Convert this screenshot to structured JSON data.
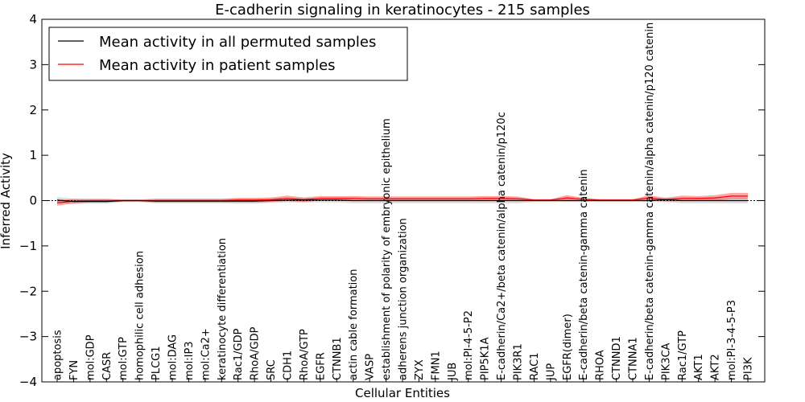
{
  "chart_data": {
    "type": "line",
    "title": "E-cadherin signaling in keratinocytes - 215 samples",
    "xlabel": "Cellular Entities",
    "ylabel": "Inferred Activity",
    "ylim": [
      -4,
      4
    ],
    "yticks": [
      "4",
      "3",
      "2",
      "1",
      "0",
      "−1",
      "−2",
      "−3",
      "−4"
    ],
    "grid": false,
    "legend_position": "top-left",
    "categories": [
      "apoptosis",
      "FYN",
      "mol:GDP",
      "CASR",
      "mol:GTP",
      "homophilic cell adhesion",
      "PLCG1",
      "mol:DAG",
      "mol:IP3",
      "mol:Ca2+",
      "keratinocyte differentiation",
      "Rac1/GDP",
      "RhoA/GDP",
      "SRC",
      "CDH1",
      "RhoA/GTP",
      "EGFR",
      "CTNNB1",
      "actin cable formation",
      "VASP",
      "establishment of polarity of embryonic epithelium",
      "adherens junction organization",
      "ZYX",
      "FMN1",
      "JUB",
      "mol:PI-4-5-P2",
      "PIP5K1A",
      "E-cadherin/Ca2+/beta catenin/alpha catenin/p120c",
      "PIK3R1",
      "RAC1",
      "JUP",
      "EGFR(dimer)",
      "E-cadherin/beta catenin-gamma catenin",
      "RHOA",
      "CTNND1",
      "CTNNA1",
      "E-cadherin/beta catenin-gamma catenin/alpha catenin/p120 catenin",
      "PIK3CA",
      "Rac1/GTP",
      "AKT1",
      "AKT2",
      "mol:PI-3-4-5-P3",
      "PI3K"
    ],
    "series": [
      {
        "name": "Mean activity in all permuted samples",
        "color": "#000000",
        "values": [
          0.01,
          -0.02,
          -0.02,
          -0.02,
          0.0,
          0.0,
          -0.01,
          -0.01,
          -0.01,
          -0.01,
          -0.01,
          -0.01,
          -0.01,
          0.0,
          0.01,
          0.01,
          0.01,
          0.01,
          0.0,
          0.0,
          0.0,
          0.0,
          0.0,
          0.0,
          0.0,
          0.0,
          0.0,
          0.0,
          0.0,
          0.0,
          0.0,
          0.0,
          0.0,
          0.0,
          0.0,
          0.0,
          0.0,
          0.02,
          0.0,
          0.0,
          0.0,
          0.0,
          0.0
        ],
        "band": [
          0.07,
          0.06,
          0.05,
          0.05,
          0.03,
          0.03,
          0.05,
          0.05,
          0.05,
          0.05,
          0.05,
          0.06,
          0.06,
          0.05,
          0.05,
          0.05,
          0.05,
          0.05,
          0.06,
          0.06,
          0.06,
          0.06,
          0.06,
          0.06,
          0.06,
          0.06,
          0.06,
          0.06,
          0.06,
          0.03,
          0.03,
          0.03,
          0.03,
          0.03,
          0.03,
          0.03,
          0.03,
          0.05,
          0.06,
          0.06,
          0.06,
          0.06,
          0.06
        ]
      },
      {
        "name": "Mean activity in patient samples",
        "color": "#ff0000",
        "values": [
          -0.05,
          -0.01,
          0.0,
          0.0,
          0.0,
          0.0,
          0.0,
          0.0,
          0.0,
          0.0,
          0.0,
          0.01,
          0.01,
          0.02,
          0.05,
          0.02,
          0.05,
          0.05,
          0.05,
          0.04,
          0.04,
          0.04,
          0.04,
          0.04,
          0.04,
          0.04,
          0.05,
          0.05,
          0.04,
          0.01,
          0.01,
          0.06,
          0.03,
          0.01,
          0.01,
          0.01,
          0.06,
          0.02,
          0.05,
          0.05,
          0.06,
          0.1,
          0.1
        ],
        "band": [
          0.06,
          0.05,
          0.04,
          0.04,
          0.02,
          0.02,
          0.04,
          0.04,
          0.04,
          0.04,
          0.04,
          0.05,
          0.05,
          0.05,
          0.06,
          0.05,
          0.05,
          0.05,
          0.05,
          0.05,
          0.05,
          0.05,
          0.05,
          0.05,
          0.05,
          0.05,
          0.05,
          0.05,
          0.05,
          0.02,
          0.02,
          0.06,
          0.03,
          0.02,
          0.02,
          0.02,
          0.06,
          0.04,
          0.06,
          0.05,
          0.06,
          0.07,
          0.07
        ]
      }
    ]
  }
}
